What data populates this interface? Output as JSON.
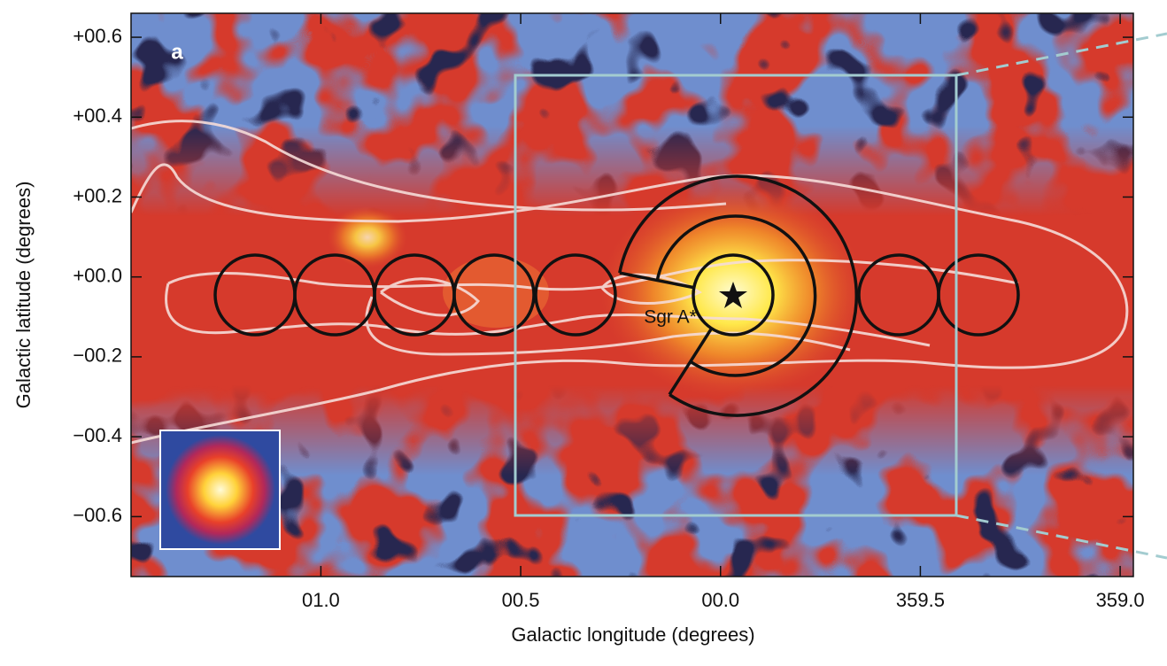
{
  "chart_data": {
    "type": "image",
    "panel_label": "a",
    "annotation": "Sgr A*",
    "xlabel": "Galactic longitude (degrees)",
    "ylabel": "Galactic latitude (degrees)",
    "xlim": [
      1.475,
      358.967
    ],
    "ylim": [
      -0.75,
      0.66
    ],
    "xticks": [
      {
        "value": 1.0,
        "label": "01.0"
      },
      {
        "value": 0.5,
        "label": "00.5"
      },
      {
        "value": 0,
        "label": "00.0"
      },
      {
        "value": 359.5,
        "label": "359.5"
      },
      {
        "value": 359.0,
        "label": "359.0"
      }
    ],
    "yticks": [
      {
        "value": 0.6,
        "label": "+00.6"
      },
      {
        "value": 0.4,
        "label": "+00.4"
      },
      {
        "value": 0.2,
        "label": "+00.2"
      },
      {
        "value": 0,
        "label": "+00.0"
      },
      {
        "value": -0.2,
        "label": "−00.2"
      },
      {
        "value": -0.4,
        "label": "−00.4"
      },
      {
        "value": -0.6,
        "label": "−00.6"
      }
    ]
  }
}
